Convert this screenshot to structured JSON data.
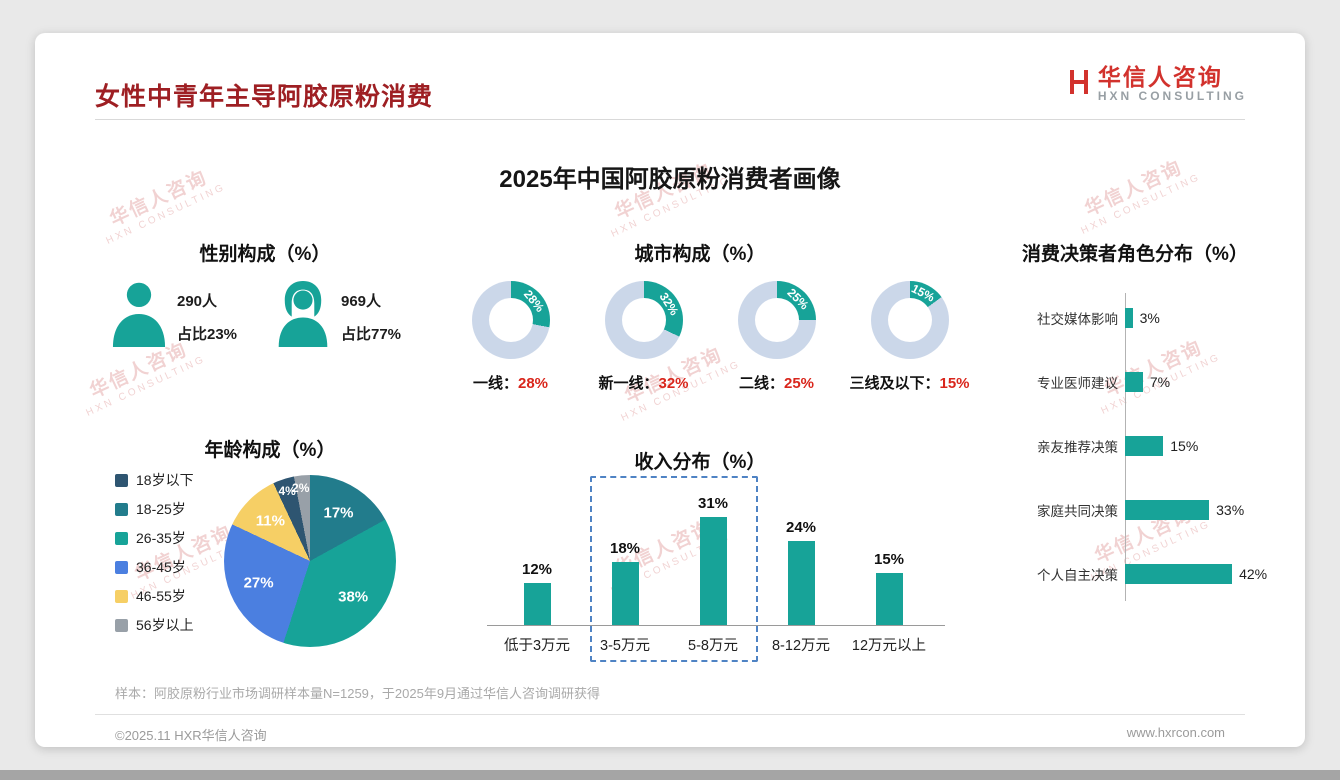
{
  "header": {
    "title": "女性中青年主导阿胶原粉消费"
  },
  "logo": {
    "name": "华信人咨询",
    "sub": "HXN CONSULTING"
  },
  "main_title": "2025年中国阿胶原粉消费者画像",
  "watermark": {
    "line1": "华信人咨询",
    "line2": "HXN CONSULTING"
  },
  "note": "样本：阿胶原粉行业市场调研样本量N=1259，于2025年9月通过华信人咨询调研获得",
  "footer": {
    "copyright": "©2025.11 HXR华信人咨询",
    "website": "www.hxrcon.com"
  },
  "colors": {
    "accent_teal": "#17a398",
    "value_red": "#d9261c",
    "title_red": "#9e1f23",
    "logo_red": "#d2322d",
    "donut_rest": "#cbd7e9",
    "highlight_dashed": "#4f83c4",
    "watermark_pink": "rgba(205,92,92,0.28)"
  },
  "chart_data": [
    {
      "id": "gender",
      "type": "pictogram",
      "title": "性别构成（%）",
      "items": [
        {
          "label": "男性",
          "count": "290人",
          "share": "占比23%"
        },
        {
          "label": "女性",
          "count": "969人",
          "share": "占比77%"
        }
      ]
    },
    {
      "id": "city",
      "type": "donut",
      "title": "城市构成（%）",
      "categories": [
        "一线",
        "新一线",
        "二线",
        "三线及以下"
      ],
      "values": [
        28,
        32,
        25,
        15
      ],
      "unit": "%",
      "ring_color": "#17a398",
      "rest_color": "#cbd7e9"
    },
    {
      "id": "decision",
      "type": "bar",
      "orientation": "horizontal",
      "title": "消费决策者角色分布（%）",
      "categories": [
        "社交媒体影响",
        "专业医师建议",
        "亲友推荐决策",
        "家庭共同决策",
        "个人自主决策"
      ],
      "values": [
        3,
        7,
        15,
        33,
        42
      ],
      "unit": "%",
      "bar_color": "#17a398"
    },
    {
      "id": "age",
      "type": "pie",
      "title": "年龄构成（%）",
      "categories": [
        "18岁以下",
        "18-25岁",
        "26-35岁",
        "36-45岁",
        "46-55岁",
        "56岁以上"
      ],
      "values": [
        4,
        17,
        38,
        27,
        11,
        2
      ],
      "unit": "%",
      "colors": [
        "#2e5571",
        "#227c8c",
        "#17a398",
        "#4b7fe0",
        "#f6cf65",
        "#98a0a8"
      ],
      "draw_order": [
        1,
        2,
        3,
        4,
        0,
        5
      ],
      "legend_position": "left"
    },
    {
      "id": "income",
      "type": "bar",
      "orientation": "vertical",
      "title": "收入分布（%）",
      "categories": [
        "低于3万元",
        "3-5万元",
        "5-8万元",
        "8-12万元",
        "12万元以上"
      ],
      "values": [
        12,
        18,
        31,
        24,
        15
      ],
      "unit": "%",
      "bar_color": "#17a398",
      "highlight": {
        "from_index": 1,
        "to_index": 2,
        "style": "dashed-box",
        "color": "#4f83c4"
      }
    }
  ]
}
